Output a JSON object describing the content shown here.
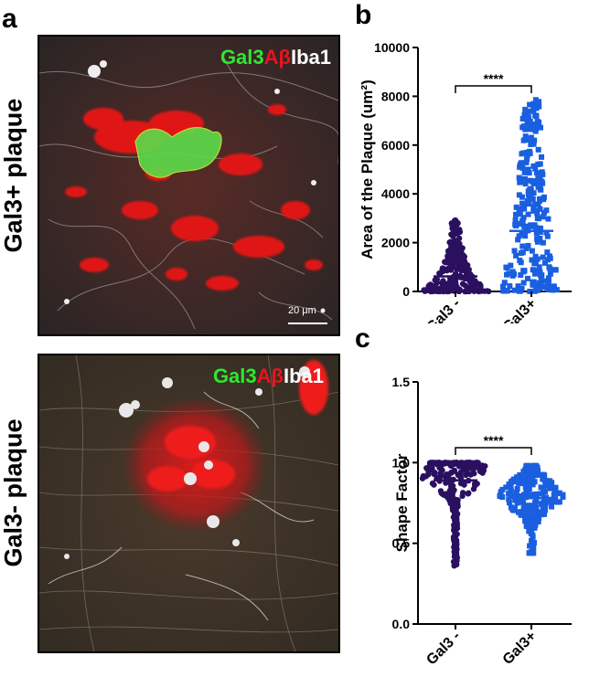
{
  "panels": {
    "a": {
      "letter": "a",
      "top_label": "Gal3+ plaque",
      "bottom_label": "Gal3- plaque",
      "stain_gal3": "Gal3",
      "stain_ab": "Aβ",
      "stain_iba1": "Iba1",
      "stain_gal3_b": "Gal3",
      "stain_ab_b": "Aβ",
      "stain_iba1_b": "Iba1",
      "scale_bar": "20 μm"
    },
    "b": {
      "letter": "b"
    },
    "c": {
      "letter": "c"
    }
  },
  "colors": {
    "gal3_minus": "#2b1060",
    "gal3_plus": "#1a5fe0",
    "stain_green": "#2ee82e",
    "stain_red": "#e8141e",
    "stain_white": "#ffffff"
  },
  "chart_data": [
    {
      "type": "scatter",
      "ylabel": "Area of the Plaque (um²)",
      "ylim": [
        0,
        10000
      ],
      "yticks": [
        "0",
        "2000",
        "4000",
        "6000",
        "8000",
        "10000"
      ],
      "categories": [
        "Gal3 -",
        "Gal3+"
      ],
      "series": [
        {
          "category": "Gal3 -",
          "mean": 620,
          "min": 0,
          "max": 2950
        },
        {
          "category": "Gal3+",
          "mean": 2480,
          "min": 0,
          "max": 7900
        }
      ],
      "significance": "****"
    },
    {
      "type": "scatter",
      "ylabel": "Shape Factor",
      "ylim": [
        0,
        1.5
      ],
      "yticks": [
        "0.0",
        "0.5",
        "1.0",
        "1.5"
      ],
      "categories": [
        "Gal3 -",
        "Gal3+"
      ],
      "series": [
        {
          "category": "Gal3 -",
          "mean": 0.89,
          "min": 0.36,
          "max": 1.0
        },
        {
          "category": "Gal3+",
          "mean": 0.78,
          "min": 0.44,
          "max": 0.98
        }
      ],
      "significance": "****"
    }
  ]
}
